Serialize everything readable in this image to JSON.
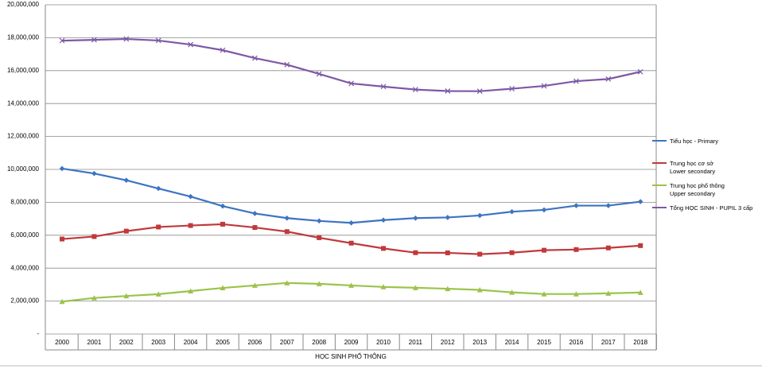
{
  "chart_data": {
    "type": "line",
    "xlabel": "HỌC SINH PHỔ THÔNG",
    "categories": [
      "2000",
      "2001",
      "2002",
      "2003",
      "2004",
      "2005",
      "2006",
      "2007",
      "2008",
      "2009",
      "2010",
      "2011",
      "2012",
      "2013",
      "2014",
      "2015",
      "2016",
      "2017",
      "2018"
    ],
    "ylim": [
      0,
      20000000
    ],
    "yticks": [
      {
        "value": 0,
        "label": "-"
      },
      {
        "value": 2000000,
        "label": "2,000,000"
      },
      {
        "value": 4000000,
        "label": "4,000,000"
      },
      {
        "value": 6000000,
        "label": "6,000,000"
      },
      {
        "value": 8000000,
        "label": "8,000,000"
      },
      {
        "value": 10000000,
        "label": "10,000,000"
      },
      {
        "value": 12000000,
        "label": "12,000,000"
      },
      {
        "value": 14000000,
        "label": "14,000,000"
      },
      {
        "value": 16000000,
        "label": "16,000,000"
      },
      {
        "value": 18000000,
        "label": "18,000,000"
      },
      {
        "value": 20000000,
        "label": "20,000,000"
      }
    ],
    "grid": true,
    "legend": "right",
    "series": [
      {
        "name": "Tiểu học - Primary",
        "color": "#3c74c2",
        "marker": "diamond",
        "values": [
          10050000,
          9750000,
          9340000,
          8840000,
          8350000,
          7770000,
          7320000,
          7040000,
          6870000,
          6750000,
          6920000,
          7040000,
          7080000,
          7200000,
          7430000,
          7540000,
          7800000,
          7800000,
          8040000
        ]
      },
      {
        "name": "Trung học cơ sở\nLower secondary",
        "color": "#c0393b",
        "marker": "square",
        "values": [
          5770000,
          5920000,
          6250000,
          6500000,
          6590000,
          6670000,
          6470000,
          6220000,
          5850000,
          5520000,
          5200000,
          4940000,
          4930000,
          4850000,
          4940000,
          5090000,
          5130000,
          5230000,
          5370000
        ]
      },
      {
        "name": "Trung học phổ thông\nUpper secondary",
        "color": "#9bc34a",
        "marker": "triangle",
        "values": [
          1970000,
          2190000,
          2310000,
          2420000,
          2610000,
          2800000,
          2950000,
          3100000,
          3050000,
          2950000,
          2860000,
          2810000,
          2750000,
          2680000,
          2530000,
          2430000,
          2430000,
          2470000,
          2520000
        ]
      },
      {
        "name": "Tổng HỌC SINH - PUPIL 3 cấp",
        "color": "#7e58a6",
        "marker": "x",
        "values": [
          17820000,
          17870000,
          17920000,
          17830000,
          17580000,
          17240000,
          16760000,
          16360000,
          15800000,
          15220000,
          15030000,
          14850000,
          14760000,
          14750000,
          14900000,
          15070000,
          15360000,
          15490000,
          15930000
        ]
      }
    ]
  }
}
